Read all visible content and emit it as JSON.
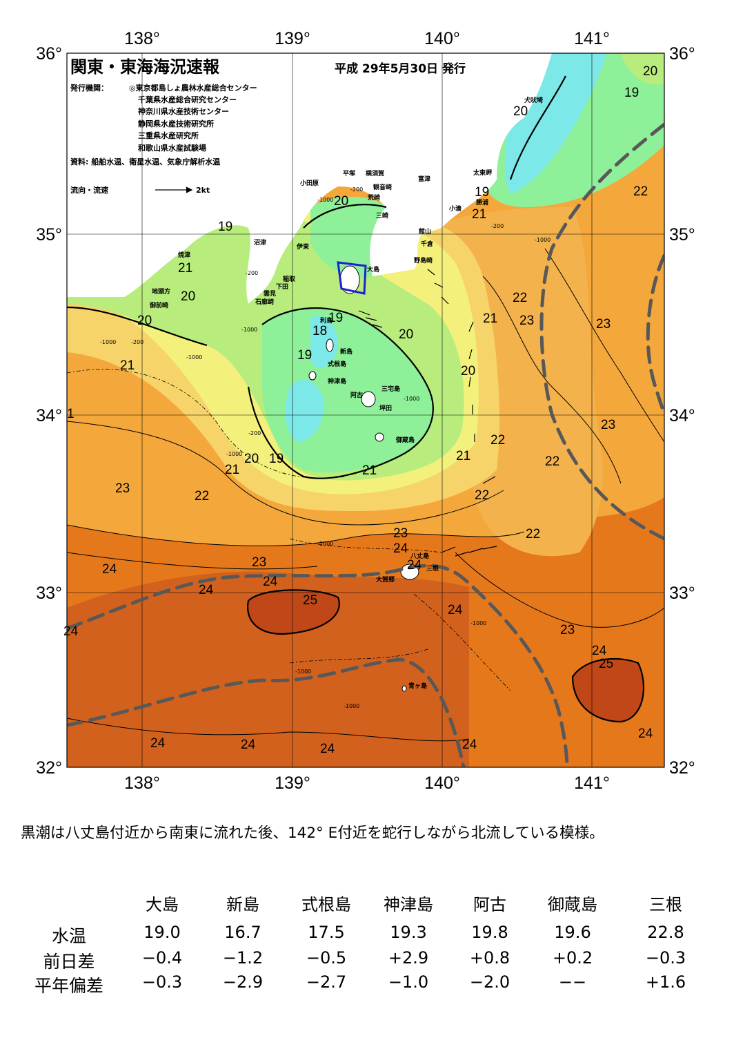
{
  "title": "関東・東海海況速報",
  "date": "平成  29年5月30日  発行",
  "issuer_label": "発行機関：",
  "issuers": [
    "◎東京都島しょ農林水産総合センター",
    "千葉県水産総合研究センター",
    "神奈川県水産技術センター",
    "静岡県水産技術研究所",
    "三重県水産研究所",
    "和歌山県水産試験場"
  ],
  "source": "資料: 船舶水温、衛星水温、気象庁解析水温",
  "legend": {
    "label": "流向・流速",
    "scale": "2kt"
  },
  "axes": {
    "lon_ticks": [
      "138°",
      "139°",
      "140°",
      "141°"
    ],
    "lat_ticks": [
      "36°",
      "35°",
      "34°",
      "33°",
      "32°"
    ]
  },
  "place_names": [
    "小田原",
    "平塚",
    "横須賀",
    "観音崎",
    "富津",
    "荒崎",
    "三崎",
    "館山",
    "千倉",
    "野島崎",
    "太東岬",
    "勝浦",
    "小湊",
    "犬吠埼",
    "沼津",
    "伊東",
    "焼津",
    "稲取",
    "下田",
    "雲見",
    "石廊崎",
    "地頭方",
    "御前崎",
    "大島",
    "利島",
    "新島",
    "式根島",
    "神津島",
    "三宅島",
    "阿古",
    "坪田",
    "御蔵島",
    "八丈島",
    "三根",
    "大賀郷",
    "青ヶ島"
  ],
  "contour_labels": [
    "20",
    "19",
    "20",
    "19",
    "21",
    "19",
    "21",
    "20",
    "20",
    "21",
    "22",
    "23",
    "23",
    "22",
    "21",
    "20",
    "19",
    "18",
    "19",
    "20",
    "20",
    "21",
    "20",
    "19",
    "21",
    "22",
    "23",
    "22",
    "23",
    "21",
    "22",
    "22",
    "23",
    "24",
    "24",
    "24",
    "23",
    "24",
    "22",
    "24",
    "25",
    "24",
    "24",
    "23",
    "24",
    "25",
    "24",
    "24",
    "24",
    "24",
    "24",
    "1"
  ],
  "depth_labels": [
    "-200",
    "-1000",
    "-200",
    "-1000",
    "-200",
    "-1000",
    "-1000",
    "-200",
    "-1000",
    "-200",
    "-1000",
    "-1000",
    "-1000",
    "-1000",
    "-1000",
    "-1000"
  ],
  "summary": "黒潮は八丈島付近から南東に流れた後、142° E付近を蛇行しながら北流している模様。",
  "stations": {
    "headers": [
      "大島",
      "新島",
      "式根島",
      "神津島",
      "阿古",
      "御蔵島",
      "三根"
    ],
    "rows": [
      {
        "label": "水温",
        "values": [
          "19.0",
          "16.7",
          "17.5",
          "19.3",
          "19.8",
          "19.6",
          "22.8"
        ]
      },
      {
        "label": "前日差",
        "values": [
          "−0.4",
          "−1.2",
          "−0.5",
          "+2.9",
          "+0.8",
          "+0.2",
          "−0.3"
        ]
      },
      {
        "label": "平年偏差",
        "values": [
          "−0.3",
          "−2.9",
          "−2.7",
          "−1.0",
          "−2.0",
          "−−",
          "+1.6"
        ]
      }
    ]
  },
  "colors": {
    "t18": "#7ce8e8",
    "t19": "#8ef098",
    "t20": "#b8ec7c",
    "t21": "#f4f07c",
    "t22": "#f6d46a",
    "t23": "#f4a83c",
    "t24": "#e6781c",
    "t25": "#c8501e",
    "land": "#ffffff",
    "kuroshio": "#585858"
  }
}
